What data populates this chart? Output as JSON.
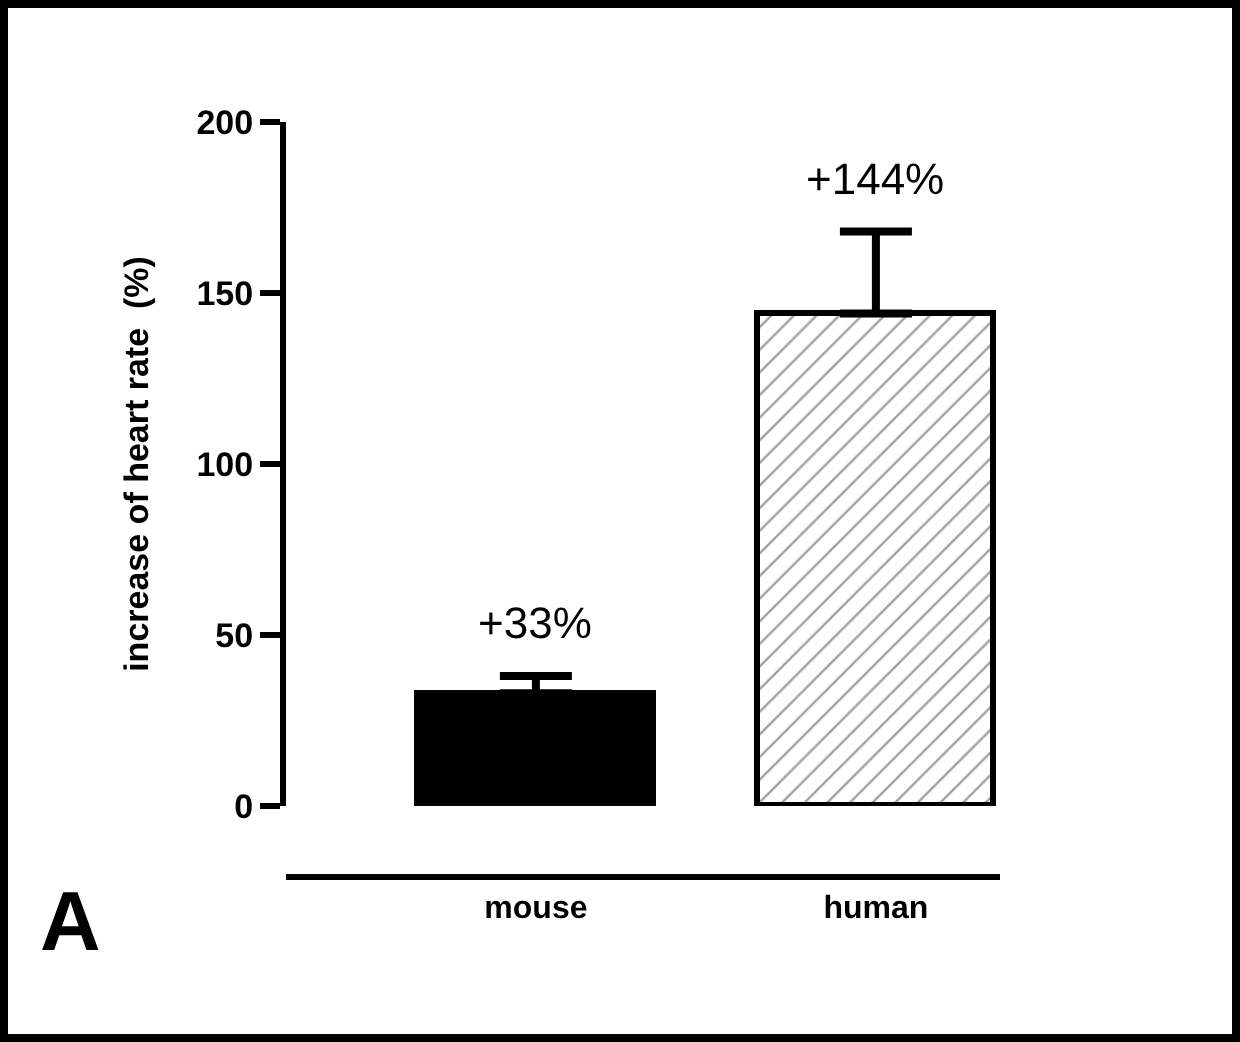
{
  "chart_data": {
    "type": "bar",
    "categories": [
      "mouse",
      "human"
    ],
    "values": [
      33,
      144
    ],
    "colors": [
      "#000000",
      "#000000"
    ],
    "errors": [
      [
        33,
        38
      ],
      [
        144,
        168
      ]
    ],
    "value_labels": [
      "+33%",
      "+144%"
    ],
    "ylabel": "increase of heart rate  (%)",
    "ylim": [
      0,
      200
    ],
    "yticks": [
      0,
      50,
      100,
      150,
      200
    ],
    "legend": false,
    "annotations": [
      "A"
    ]
  }
}
